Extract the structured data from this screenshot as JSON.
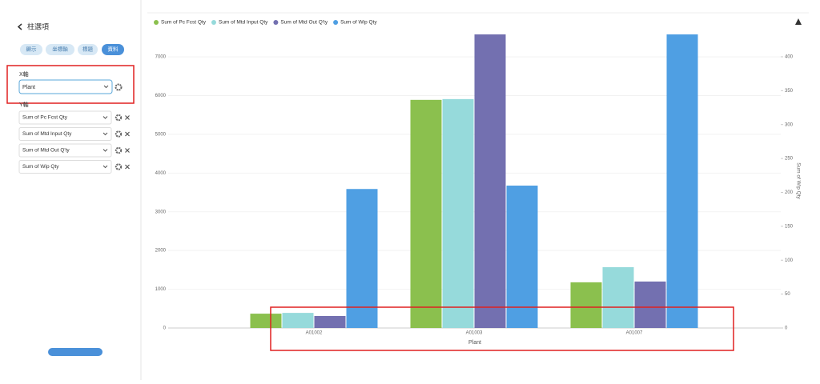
{
  "panel": {
    "back_title": "柱選項",
    "tabs": [
      "顯示",
      "坐標軸",
      "標題",
      "資料"
    ],
    "x_label": "X軸",
    "x_field": "Plant",
    "y_label": "Y軸",
    "y_fields": [
      "Sum of Pc Fcst Qty",
      "Sum of Mtd Input Qty",
      "Sum of Mtd Out Q'ty",
      "Sum of Wip Qty"
    ]
  },
  "chart_data": {
    "type": "bar",
    "x_label": "Plant",
    "y2_label": "Sum of Wip Qty",
    "categories": [
      "A01002",
      "A01003",
      "A01007"
    ],
    "series": [
      {
        "name": "Sum of Pc Fcst Qty",
        "color": "#8bc04e",
        "values": [
          370,
          5890,
          1180
        ]
      },
      {
        "name": "Sum of Mtd Input Qty",
        "color": "#96dadb",
        "values": [
          390,
          5910,
          1570
        ]
      },
      {
        "name": "Sum of Mtd Out Q'ty",
        "color": "#7370b0",
        "values": [
          310,
          7580,
          1200
        ]
      },
      {
        "name": "Sum of Wip Qty",
        "color": "#4f9fe3",
        "axis": "y2",
        "values": [
          205,
          210,
          433
        ]
      }
    ],
    "ylim": [
      0,
      7580
    ],
    "yticks": [
      0,
      1000,
      2000,
      3000,
      4000,
      5000,
      6000,
      7000
    ],
    "y2lim": [
      0,
      433
    ],
    "y2ticks": [
      0,
      50,
      100,
      150,
      200,
      250,
      300,
      350,
      400
    ],
    "grid": true,
    "legend": "top"
  }
}
